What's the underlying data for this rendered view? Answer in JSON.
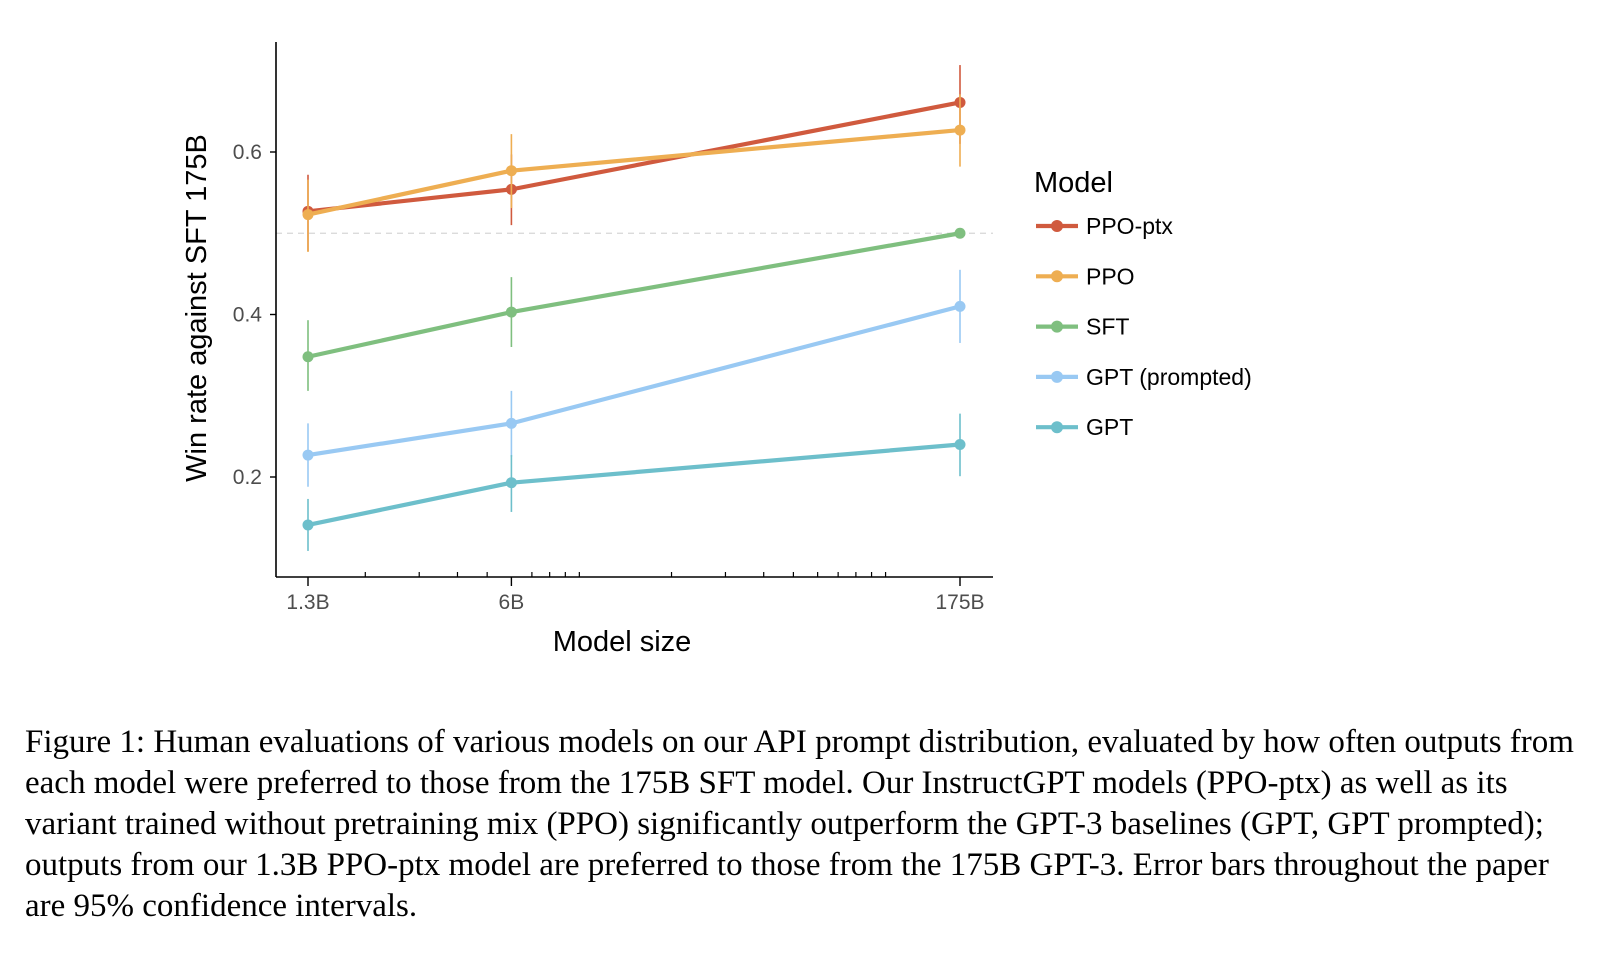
{
  "caption": "Figure 1: Human evaluations of various models on our API prompt distribution, evaluated by how often outputs from each model were preferred to those from the 175B SFT model. Our InstructGPT models (PPO-ptx) as well as its variant trained without pretraining mix (PPO) significantly outperform the GPT-3 baselines (GPT, GPT prompted); outputs from our 1.3B PPO-ptx model are preferred to those from the 175B GPT-3. Error bars throughout the paper are 95% confidence intervals.",
  "chart_data": {
    "type": "line",
    "title": "",
    "xlabel": "Model size",
    "ylabel": "Win rate against SFT 175B",
    "x_scale": "log",
    "x": [
      1.3,
      6,
      175
    ],
    "x_tick_labels": [
      "1.3B",
      "6B",
      "175B"
    ],
    "y_ticks": [
      0.2,
      0.4,
      0.6
    ],
    "y_tick_labels": [
      "0.2",
      "0.4",
      "0.6"
    ],
    "ylim": [
      0.085,
      0.74
    ],
    "reference_line": 0.5,
    "grid": false,
    "legend": {
      "title": "Model",
      "placement": "right"
    },
    "series": [
      {
        "name": "PPO-ptx",
        "color": "#d05a3e",
        "values": [
          0.527,
          0.554,
          0.661
        ],
        "lower": [
          0.478,
          0.51,
          0.61
        ],
        "upper": [
          0.572,
          0.597,
          0.707
        ]
      },
      {
        "name": "PPO",
        "color": "#eeae52",
        "values": [
          0.523,
          0.577,
          0.627
        ],
        "lower": [
          0.477,
          0.531,
          0.582
        ],
        "upper": [
          0.566,
          0.622,
          0.671
        ]
      },
      {
        "name": "SFT",
        "color": "#7fbf7f",
        "values": [
          0.348,
          0.403,
          0.5
        ],
        "lower": [
          0.306,
          0.36,
          0.5
        ],
        "upper": [
          0.393,
          0.446,
          0.5
        ]
      },
      {
        "name": "GPT (prompted)",
        "color": "#99c9f3",
        "values": [
          0.227,
          0.266,
          0.41
        ],
        "lower": [
          0.188,
          0.225,
          0.365
        ],
        "upper": [
          0.266,
          0.306,
          0.455
        ]
      },
      {
        "name": "GPT",
        "color": "#6dbfcb",
        "values": [
          0.141,
          0.193,
          0.24
        ],
        "lower": [
          0.109,
          0.157,
          0.201
        ],
        "upper": [
          0.173,
          0.227,
          0.278
        ]
      }
    ]
  }
}
